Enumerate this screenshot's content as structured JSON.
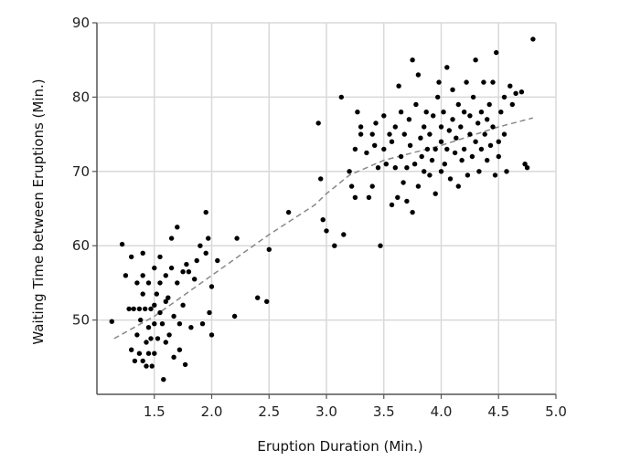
{
  "chart_data": {
    "type": "scatter",
    "xlabel": "Eruption Duration (Min.)",
    "ylabel": "Waiting Time between Eruptions (Min.)",
    "xlim": [
      1.0,
      5.0
    ],
    "ylim": [
      40,
      90
    ],
    "x_ticks": [
      1.5,
      2.0,
      2.5,
      3.0,
      3.5,
      4.0,
      4.5,
      5.0
    ],
    "x_tick_labels": [
      "1.5",
      "2.0",
      "2.5",
      "3.0",
      "3.5",
      "4.0",
      "4.5",
      "5.0"
    ],
    "y_ticks": [
      50,
      60,
      70,
      80,
      90
    ],
    "y_tick_labels": [
      "50",
      "60",
      "70",
      "80",
      "90"
    ],
    "grid": true,
    "colors": {
      "points": "#000000",
      "fit_line": "#888888",
      "grid": "#d9d9d9",
      "axis": "#555555"
    },
    "trend_line": {
      "style": "dashed",
      "x": [
        1.15,
        1.5,
        2.0,
        2.5,
        2.9,
        3.0,
        3.2,
        3.5,
        4.0,
        4.5,
        4.8
      ],
      "y": [
        47.5,
        50.5,
        56,
        61.5,
        65.5,
        67,
        69.5,
        71.5,
        73.5,
        76,
        77.2
      ]
    },
    "points": [
      [
        1.13,
        49.8
      ],
      [
        1.22,
        60.2
      ],
      [
        1.25,
        56.0
      ],
      [
        1.28,
        51.5
      ],
      [
        1.3,
        58.5
      ],
      [
        1.3,
        46.0
      ],
      [
        1.32,
        51.5
      ],
      [
        1.33,
        44.5
      ],
      [
        1.35,
        55.0
      ],
      [
        1.35,
        48.0
      ],
      [
        1.37,
        51.5
      ],
      [
        1.37,
        45.5
      ],
      [
        1.38,
        50.0
      ],
      [
        1.4,
        59.0
      ],
      [
        1.4,
        56.0
      ],
      [
        1.4,
        53.5
      ],
      [
        1.4,
        44.5
      ],
      [
        1.42,
        51.5
      ],
      [
        1.43,
        47.0
      ],
      [
        1.43,
        43.8
      ],
      [
        1.45,
        55.0
      ],
      [
        1.45,
        49.0
      ],
      [
        1.45,
        45.5
      ],
      [
        1.47,
        51.5
      ],
      [
        1.47,
        47.5
      ],
      [
        1.48,
        43.8
      ],
      [
        1.5,
        57.0
      ],
      [
        1.5,
        52.0
      ],
      [
        1.5,
        49.5
      ],
      [
        1.5,
        45.5
      ],
      [
        1.52,
        53.5
      ],
      [
        1.53,
        47.5
      ],
      [
        1.55,
        58.5
      ],
      [
        1.55,
        55.0
      ],
      [
        1.55,
        51.0
      ],
      [
        1.57,
        49.5
      ],
      [
        1.58,
        42.0
      ],
      [
        1.6,
        56.0
      ],
      [
        1.6,
        52.5
      ],
      [
        1.6,
        47.0
      ],
      [
        1.62,
        53.0
      ],
      [
        1.63,
        48.0
      ],
      [
        1.65,
        61.0
      ],
      [
        1.65,
        57.0
      ],
      [
        1.67,
        50.5
      ],
      [
        1.67,
        45.0
      ],
      [
        1.7,
        62.5
      ],
      [
        1.7,
        55.0
      ],
      [
        1.72,
        49.5
      ],
      [
        1.72,
        46.0
      ],
      [
        1.75,
        56.5
      ],
      [
        1.75,
        52.0
      ],
      [
        1.77,
        44.0
      ],
      [
        1.78,
        57.5
      ],
      [
        1.8,
        56.5
      ],
      [
        1.82,
        49.0
      ],
      [
        1.85,
        55.5
      ],
      [
        1.87,
        58.0
      ],
      [
        1.9,
        60.0
      ],
      [
        1.92,
        49.5
      ],
      [
        1.95,
        59.0
      ],
      [
        1.95,
        64.5
      ],
      [
        1.97,
        61.0
      ],
      [
        1.98,
        51.0
      ],
      [
        2.0,
        48.0
      ],
      [
        2.0,
        54.5
      ],
      [
        2.05,
        58.0
      ],
      [
        2.2,
        50.5
      ],
      [
        2.22,
        61.0
      ],
      [
        2.4,
        53.0
      ],
      [
        2.48,
        52.5
      ],
      [
        2.5,
        59.5
      ],
      [
        2.67,
        64.5
      ],
      [
        2.93,
        76.5
      ],
      [
        2.95,
        69.0
      ],
      [
        2.97,
        63.5
      ],
      [
        3.0,
        62.0
      ],
      [
        3.07,
        60.0
      ],
      [
        3.13,
        80.0
      ],
      [
        3.15,
        61.5
      ],
      [
        3.2,
        70.0
      ],
      [
        3.22,
        68.0
      ],
      [
        3.25,
        66.5
      ],
      [
        3.25,
        73.0
      ],
      [
        3.27,
        78.0
      ],
      [
        3.3,
        76.0
      ],
      [
        3.3,
        75.0
      ],
      [
        3.35,
        72.5
      ],
      [
        3.37,
        66.5
      ],
      [
        3.4,
        68.0
      ],
      [
        3.4,
        75.0
      ],
      [
        3.42,
        73.5
      ],
      [
        3.43,
        76.5
      ],
      [
        3.45,
        70.5
      ],
      [
        3.47,
        60.0
      ],
      [
        3.5,
        73.0
      ],
      [
        3.5,
        77.5
      ],
      [
        3.52,
        71.0
      ],
      [
        3.55,
        75.0
      ],
      [
        3.57,
        65.5
      ],
      [
        3.57,
        74.0
      ],
      [
        3.6,
        70.5
      ],
      [
        3.6,
        76.0
      ],
      [
        3.62,
        66.5
      ],
      [
        3.63,
        81.5
      ],
      [
        3.65,
        72.0
      ],
      [
        3.65,
        78.0
      ],
      [
        3.67,
        68.5
      ],
      [
        3.68,
        75.0
      ],
      [
        3.7,
        70.5
      ],
      [
        3.7,
        66.0
      ],
      [
        3.72,
        77.0
      ],
      [
        3.73,
        73.5
      ],
      [
        3.75,
        64.5
      ],
      [
        3.75,
        85.0
      ],
      [
        3.77,
        71.0
      ],
      [
        3.78,
        79.0
      ],
      [
        3.8,
        83.0
      ],
      [
        3.8,
        68.0
      ],
      [
        3.82,
        74.5
      ],
      [
        3.83,
        72.0
      ],
      [
        3.85,
        76.0
      ],
      [
        3.85,
        70.0
      ],
      [
        3.87,
        78.0
      ],
      [
        3.88,
        73.0
      ],
      [
        3.9,
        69.5
      ],
      [
        3.9,
        75.0
      ],
      [
        3.92,
        71.5
      ],
      [
        3.93,
        77.5
      ],
      [
        3.95,
        67.0
      ],
      [
        3.95,
        73.0
      ],
      [
        3.97,
        80.0
      ],
      [
        3.98,
        82.0
      ],
      [
        4.0,
        70.0
      ],
      [
        4.0,
        74.0
      ],
      [
        4.0,
        76.0
      ],
      [
        4.02,
        78.0
      ],
      [
        4.03,
        71.0
      ],
      [
        4.05,
        84.0
      ],
      [
        4.05,
        73.0
      ],
      [
        4.07,
        75.5
      ],
      [
        4.08,
        69.0
      ],
      [
        4.1,
        81.0
      ],
      [
        4.1,
        77.0
      ],
      [
        4.12,
        72.5
      ],
      [
        4.13,
        74.5
      ],
      [
        4.15,
        68.0
      ],
      [
        4.15,
        79.0
      ],
      [
        4.17,
        76.0
      ],
      [
        4.18,
        71.5
      ],
      [
        4.2,
        78.0
      ],
      [
        4.2,
        73.0
      ],
      [
        4.22,
        82.0
      ],
      [
        4.23,
        69.5
      ],
      [
        4.25,
        75.0
      ],
      [
        4.25,
        77.5
      ],
      [
        4.27,
        72.0
      ],
      [
        4.28,
        80.0
      ],
      [
        4.3,
        74.0
      ],
      [
        4.3,
        85.0
      ],
      [
        4.32,
        76.5
      ],
      [
        4.33,
        70.0
      ],
      [
        4.35,
        78.0
      ],
      [
        4.35,
        73.0
      ],
      [
        4.37,
        82.0
      ],
      [
        4.38,
        75.0
      ],
      [
        4.4,
        71.5
      ],
      [
        4.4,
        77.0
      ],
      [
        4.42,
        79.0
      ],
      [
        4.43,
        73.5
      ],
      [
        4.45,
        76.0
      ],
      [
        4.45,
        82.0
      ],
      [
        4.47,
        69.5
      ],
      [
        4.48,
        86.0
      ],
      [
        4.5,
        74.0
      ],
      [
        4.5,
        72.0
      ],
      [
        4.52,
        78.0
      ],
      [
        4.55,
        80.0
      ],
      [
        4.55,
        75.0
      ],
      [
        4.57,
        70.0
      ],
      [
        4.6,
        81.5
      ],
      [
        4.62,
        79.0
      ],
      [
        4.65,
        80.5
      ],
      [
        4.7,
        80.7
      ],
      [
        4.73,
        71.0
      ],
      [
        4.75,
        70.5
      ],
      [
        4.8,
        87.8
      ]
    ]
  }
}
